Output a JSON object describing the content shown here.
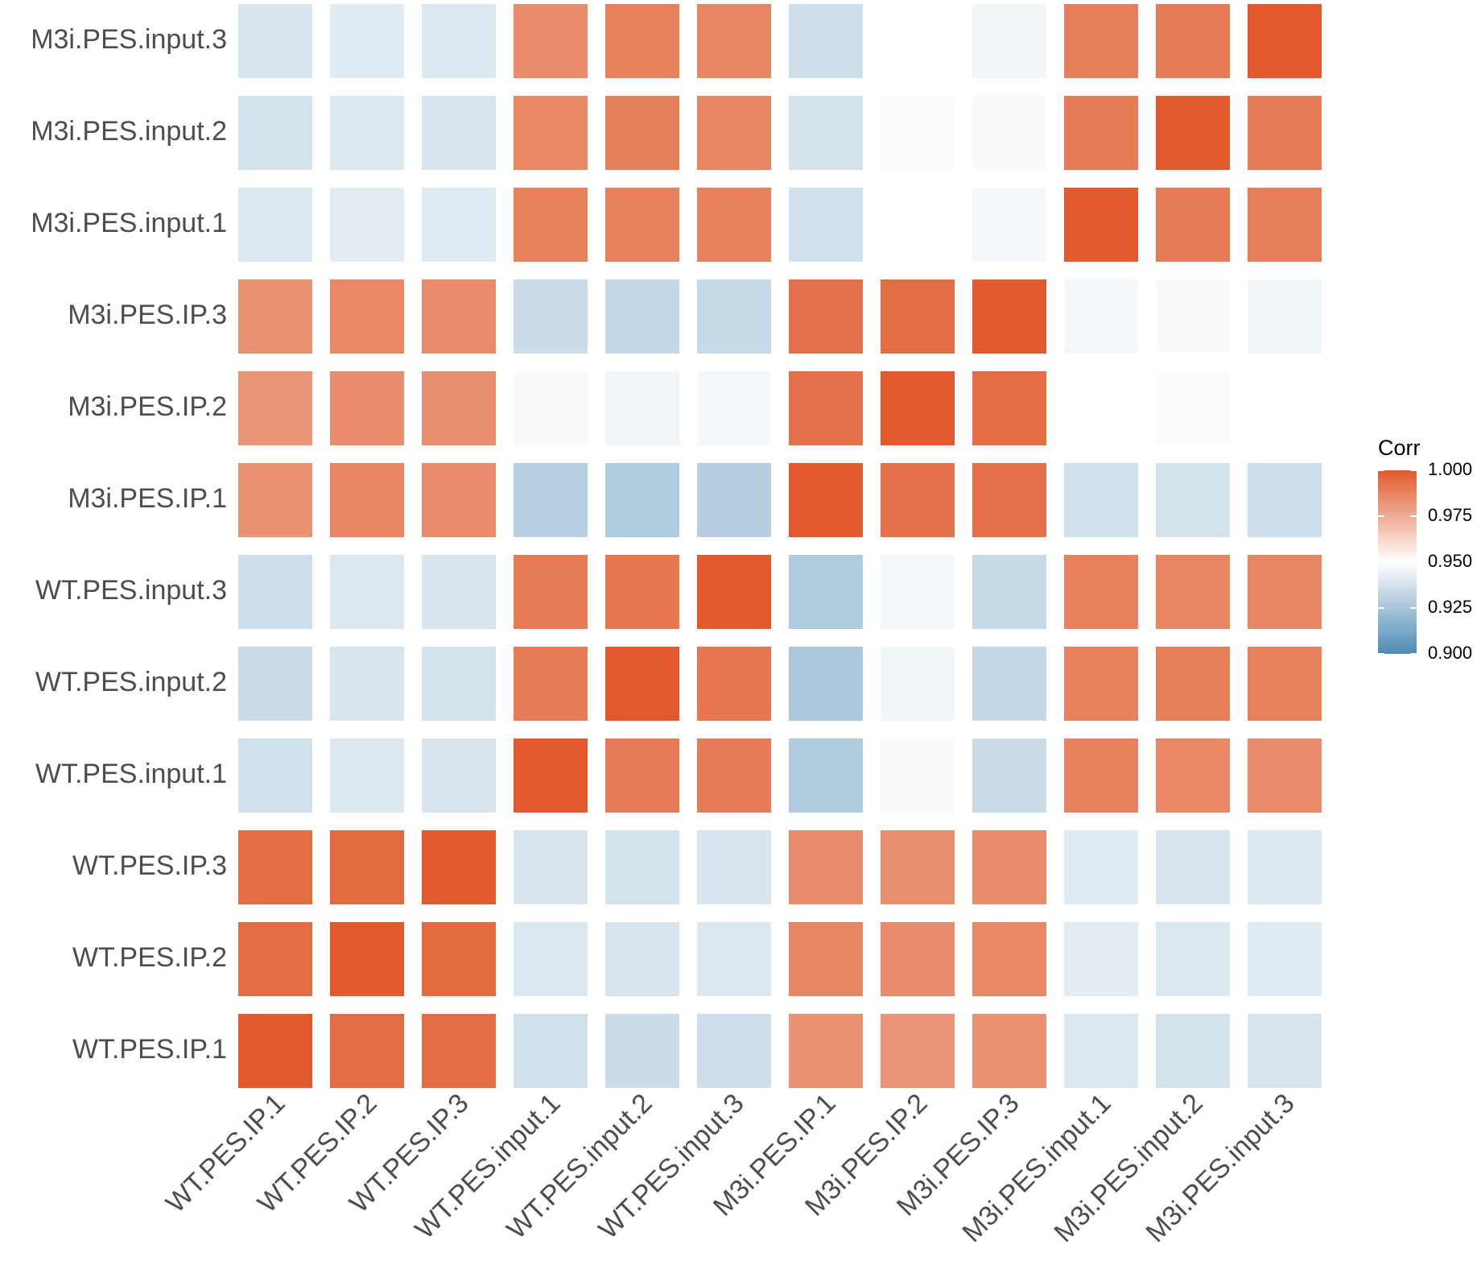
{
  "chart_data": {
    "type": "heatmap",
    "title": "",
    "xlabel": "",
    "ylabel": "",
    "x_categories": [
      "WT.PES.IP.1",
      "WT.PES.IP.2",
      "WT.PES.IP.3",
      "WT.PES.input.1",
      "WT.PES.input.2",
      "WT.PES.input.3",
      "M3i.PES.IP.1",
      "M3i.PES.IP.2",
      "M3i.PES.IP.3",
      "M3i.PES.input.1",
      "M3i.PES.input.2",
      "M3i.PES.input.3"
    ],
    "y_categories": [
      "WT.PES.IP.1",
      "WT.PES.IP.2",
      "WT.PES.IP.3",
      "WT.PES.input.1",
      "WT.PES.input.2",
      "WT.PES.input.3",
      "M3i.PES.IP.1",
      "M3i.PES.IP.2",
      "M3i.PES.IP.3",
      "M3i.PES.input.1",
      "M3i.PES.input.2",
      "M3i.PES.input.3"
    ],
    "values": [
      [
        1.0,
        0.994,
        0.994,
        0.937,
        0.935,
        0.936,
        0.983,
        0.982,
        0.983,
        0.94,
        0.938,
        0.939
      ],
      [
        0.994,
        1.0,
        0.995,
        0.94,
        0.939,
        0.94,
        0.987,
        0.985,
        0.986,
        0.942,
        0.94,
        0.941
      ],
      [
        0.994,
        0.995,
        1.0,
        0.939,
        0.938,
        0.939,
        0.985,
        0.984,
        0.985,
        0.941,
        0.939,
        0.94
      ],
      [
        0.937,
        0.94,
        0.939,
        1.0,
        0.99,
        0.99,
        0.928,
        0.948,
        0.935,
        0.988,
        0.986,
        0.985
      ],
      [
        0.935,
        0.939,
        0.938,
        0.99,
        1.0,
        0.991,
        0.926,
        0.946,
        0.933,
        0.988,
        0.989,
        0.988
      ],
      [
        0.936,
        0.94,
        0.939,
        0.99,
        0.991,
        1.0,
        0.928,
        0.947,
        0.934,
        0.988,
        0.987,
        0.987
      ],
      [
        0.983,
        0.987,
        0.985,
        0.93,
        0.928,
        0.929,
        1.0,
        0.993,
        0.993,
        0.937,
        0.938,
        0.936
      ],
      [
        0.982,
        0.985,
        0.984,
        0.948,
        0.946,
        0.947,
        0.993,
        1.0,
        0.994,
        0.95,
        0.951,
        0.95
      ],
      [
        0.983,
        0.986,
        0.985,
        0.935,
        0.933,
        0.934,
        0.993,
        0.994,
        1.0,
        0.947,
        0.948,
        0.946
      ],
      [
        0.94,
        0.942,
        0.941,
        0.988,
        0.988,
        0.988,
        0.937,
        0.95,
        0.947,
        1.0,
        0.99,
        0.989
      ],
      [
        0.938,
        0.94,
        0.939,
        0.986,
        0.989,
        0.987,
        0.938,
        0.951,
        0.948,
        0.99,
        1.0,
        0.99
      ],
      [
        0.939,
        0.941,
        0.94,
        0.985,
        0.988,
        0.987,
        0.936,
        0.95,
        0.946,
        0.989,
        0.99,
        1.0
      ]
    ],
    "legend": {
      "title": "Corr",
      "position": "right",
      "min": 0.9,
      "max": 1.0,
      "breaks": [
        1.0,
        0.975,
        0.95,
        0.925,
        0.9
      ],
      "break_labels": [
        "1.000",
        "0.975",
        "0.950",
        "0.925",
        "0.900"
      ],
      "colors": {
        "low": "#4f8ab6",
        "mid": "#ffffff",
        "high": "#e05a2b"
      }
    },
    "grid": false
  }
}
